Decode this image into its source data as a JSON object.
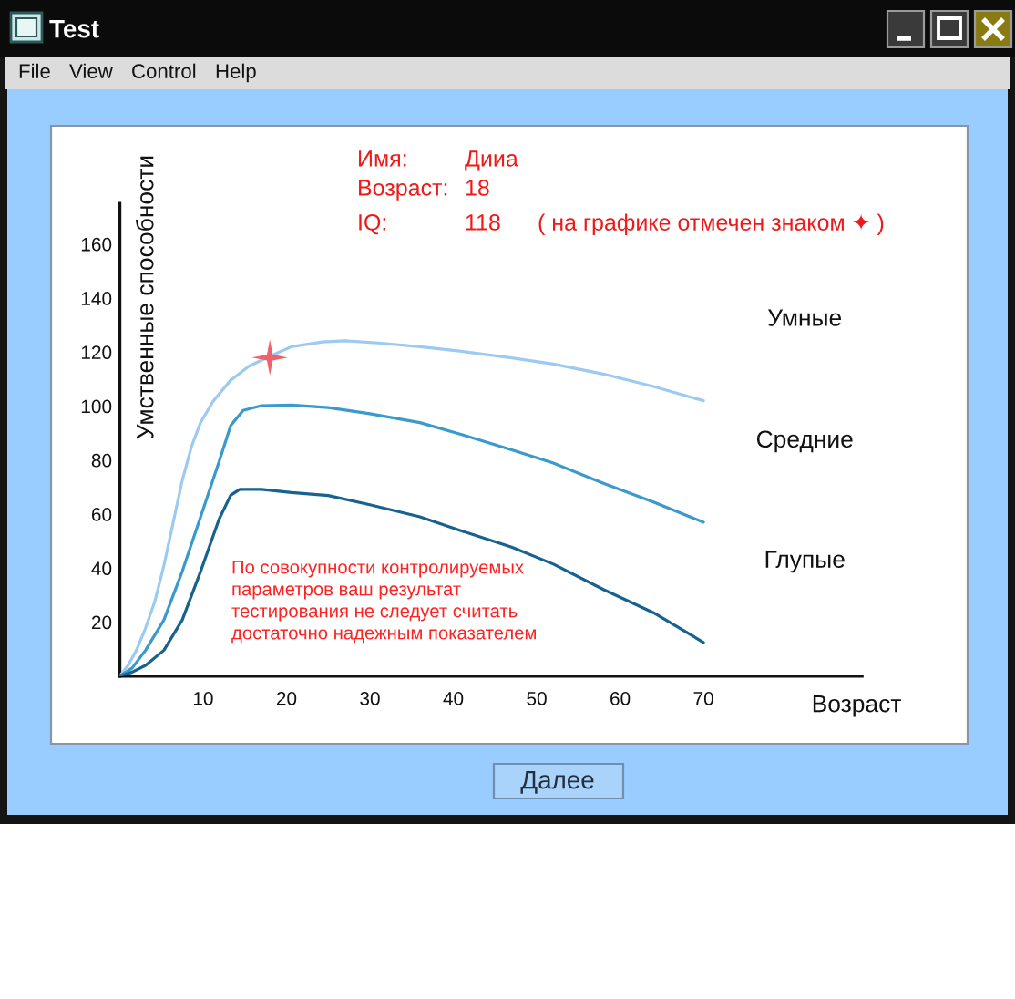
{
  "chart_data": {
    "type": "line",
    "title": "Test",
    "xlabel": "Возраст",
    "ylabel": "Умственные способности",
    "xlim": [
      0,
      89
    ],
    "ylim": [
      0,
      175
    ],
    "xticks": [
      10,
      20,
      30,
      40,
      50,
      60,
      70
    ],
    "yticks": [
      20,
      40,
      60,
      80,
      100,
      120,
      140,
      160
    ],
    "grid": false,
    "legend": false,
    "line_style": "solid",
    "series": [
      {
        "name": "Умные",
        "color": "#9ccaf0",
        "x": [
          0,
          1,
          2,
          3,
          4.2,
          5.3,
          6.4,
          7.5,
          8.6,
          9.7,
          11.2,
          13.3,
          15.5,
          18,
          20.6,
          24.3,
          27,
          31,
          36,
          41,
          47,
          52,
          58,
          64,
          70
        ],
        "values": [
          0,
          4,
          9.6,
          17,
          27.6,
          41,
          56.8,
          72.5,
          85,
          94,
          101.8,
          109.6,
          114.8,
          118.5,
          122,
          123.8,
          124.2,
          123.4,
          122,
          120.3,
          117.9,
          115.6,
          111.9,
          107.3,
          102
        ]
      },
      {
        "name": "Средние",
        "color": "#3a9acb",
        "x": [
          0,
          1.5,
          3.1,
          5.3,
          7.5,
          9.7,
          11.9,
          13.3,
          14.8,
          17,
          20.6,
          25,
          30,
          36,
          41,
          47,
          52,
          58,
          64,
          70
        ],
        "values": [
          0,
          3,
          9.6,
          20.8,
          38.8,
          59,
          79.3,
          92.8,
          98.4,
          100.2,
          100.4,
          99.5,
          97.2,
          93.9,
          89.5,
          83.8,
          78.9,
          71.4,
          64.5,
          57
        ]
      },
      {
        "name": "Глупые",
        "color": "#17628e",
        "x": [
          0,
          1.5,
          3.1,
          5.3,
          7.5,
          9.7,
          11.9,
          13.3,
          14.4,
          17,
          20.6,
          25,
          30,
          36,
          41,
          47,
          52,
          58,
          64,
          70
        ],
        "values": [
          0,
          1.5,
          4,
          9.6,
          20.8,
          38.8,
          58,
          67,
          69.2,
          69.2,
          68,
          66.9,
          63.5,
          59,
          53.8,
          47.8,
          41.5,
          32.1,
          23.5,
          12.5
        ]
      },
      {
        "type": "scatter",
        "color": "#f0606e",
        "marker": "star",
        "x": [
          18
        ],
        "values": [
          118
        ]
      }
    ],
    "annotations": [
      "Имя:",
      "Дииа",
      "Возраст:",
      "18",
      "IQ:",
      "118",
      "( на графике отмечен знаком ✦ )",
      "По совокупности контролируемых\nпараметров ваш результат\nтестирования не следует считать\nдостаточно надежным показателем",
      "File",
      "View",
      "Control",
      "Help",
      "Далее"
    ]
  }
}
